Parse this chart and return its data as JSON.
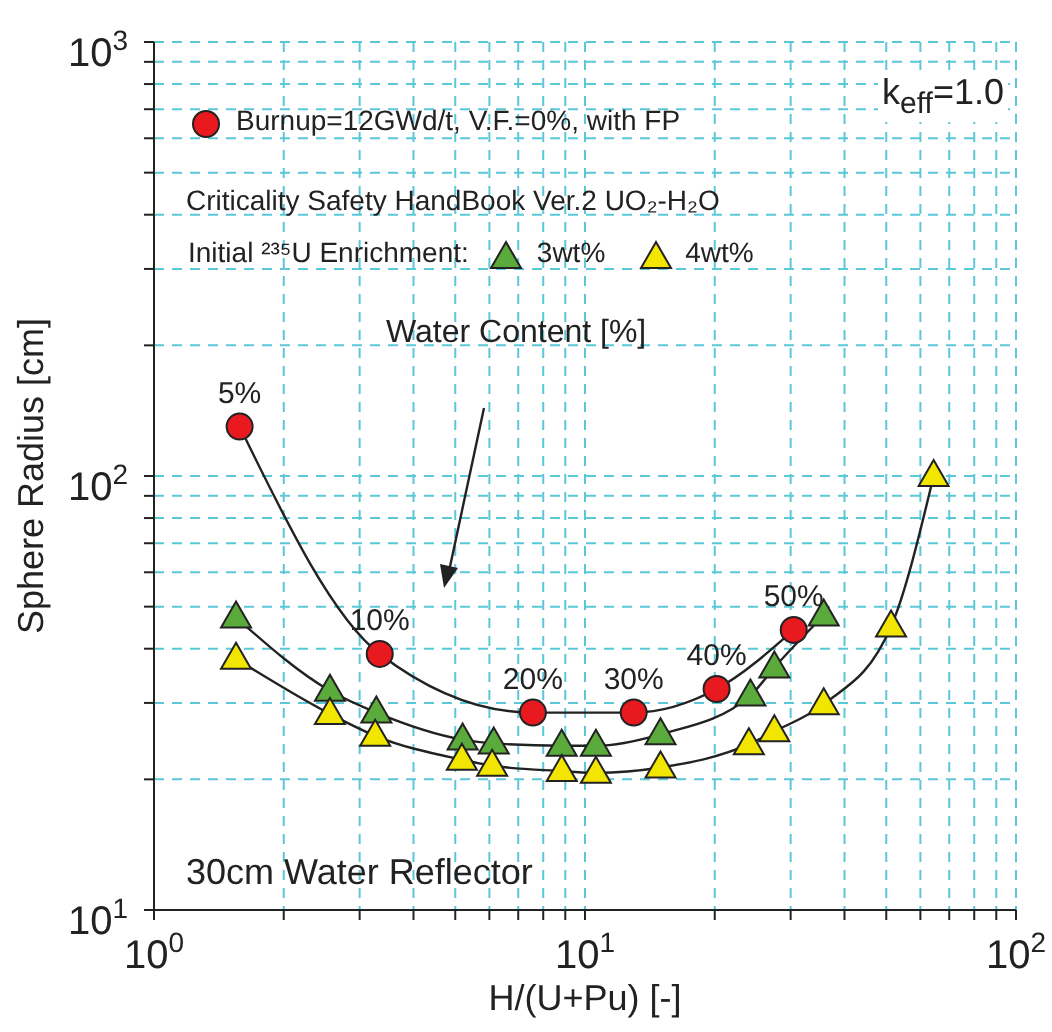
{
  "chart_data": {
    "type": "line",
    "xlabel": "H/(U+Pu) [-]",
    "ylabel": "Sphere Radius [cm]",
    "log": "xy",
    "grid": true,
    "legend": "top left",
    "legend_title": "Initial ²³⁵U Enrichment:",
    "line_style": "solid",
    "xlim": [
      1,
      100
    ],
    "ylim": [
      10,
      1000
    ],
    "xticks": [
      {
        "value": 1,
        "label": "10$^{0}$"
      },
      {
        "value": 2,
        "label": null
      },
      {
        "value": 3,
        "label": null
      },
      {
        "value": 4,
        "label": null
      },
      {
        "value": 5,
        "label": null
      },
      {
        "value": 6,
        "label": null
      },
      {
        "value": 7,
        "label": null
      },
      {
        "value": 8,
        "label": null
      },
      {
        "value": 9,
        "label": null
      },
      {
        "value": 10,
        "label": "10$^{1}$"
      },
      {
        "value": 20,
        "label": null
      },
      {
        "value": 30,
        "label": null
      },
      {
        "value": 40,
        "label": null
      },
      {
        "value": 50,
        "label": null
      },
      {
        "value": 60,
        "label": null
      },
      {
        "value": 70,
        "label": null
      },
      {
        "value": 80,
        "label": null
      },
      {
        "value": 90,
        "label": null
      },
      {
        "value": 100,
        "label": "10$^{2}$"
      }
    ],
    "yticks": [
      {
        "value": 10,
        "label": "10$^{1}$"
      },
      {
        "value": 20,
        "label": null
      },
      {
        "value": 30,
        "label": null
      },
      {
        "value": 40,
        "label": null
      },
      {
        "value": 50,
        "label": null
      },
      {
        "value": 60,
        "label": null
      },
      {
        "value": 70,
        "label": null
      },
      {
        "value": 80,
        "label": null
      },
      {
        "value": 90,
        "label": null
      },
      {
        "value": 100,
        "label": "10$^{2}$"
      },
      {
        "value": 200,
        "label": null
      },
      {
        "value": 300,
        "label": null
      },
      {
        "value": 400,
        "label": null
      },
      {
        "value": 500,
        "label": null
      },
      {
        "value": 600,
        "label": null
      },
      {
        "value": 700,
        "label": null
      },
      {
        "value": 800,
        "label": null
      },
      {
        "value": 900,
        "label": null
      },
      {
        "value": 1000,
        "label": "10$^{3}$"
      }
    ],
    "series": [
      {
        "name": "Burnup=12GWd/t, V.F.=0%, with FP",
        "color": "#e8191f",
        "marker": "circle",
        "x": [
          1.58,
          3.34,
          7.57,
          12.97,
          20.2,
          30.5
        ],
        "values": [
          130,
          38.9,
          28.5,
          28.5,
          32.3,
          44.2
        ]
      },
      {
        "name": "3wt%",
        "color": "#5aaa3c",
        "marker": "triangle",
        "x": [
          1.55,
          2.56,
          3.28,
          5.2,
          6.14,
          8.83,
          10.6,
          14.97,
          24.2,
          27.5,
          35.8
        ],
        "values": [
          47.2,
          32.0,
          28.5,
          24.7,
          24.2,
          23.9,
          23.9,
          25.4,
          31.2,
          36.2,
          47.7
        ]
      },
      {
        "name": "4wt%",
        "color": "#f2e600",
        "marker": "triangle",
        "x": [
          1.55,
          2.56,
          3.26,
          5.18,
          6.09,
          8.83,
          10.6,
          14.97,
          24.0,
          27.5,
          35.8,
          51.3,
          64.4
        ],
        "values": [
          37.9,
          28.3,
          25.2,
          22.2,
          21.5,
          20.9,
          20.7,
          21.3,
          24.1,
          25.8,
          29.8,
          45.0,
          100
        ]
      }
    ],
    "annotations": [
      "k$_{eff}$=1.0",
      "Water Content [%]",
      "Criticality Safety HandBook Ver.2 UO₂-H₂O",
      "30cm Water Reflector",
      {
        "text": "5%",
        "x": 1.58,
        "y": 130
      },
      {
        "text": "10%",
        "x": 3.34,
        "y": 38.9
      },
      {
        "text": "20%",
        "x": 7.57,
        "y": 28.5
      },
      {
        "text": "30%",
        "x": 12.97,
        "y": 28.5
      },
      {
        "text": "40%",
        "x": 20.2,
        "y": 32.3
      },
      {
        "text": "50%",
        "x": 30.5,
        "y": 44.2
      }
    ]
  }
}
